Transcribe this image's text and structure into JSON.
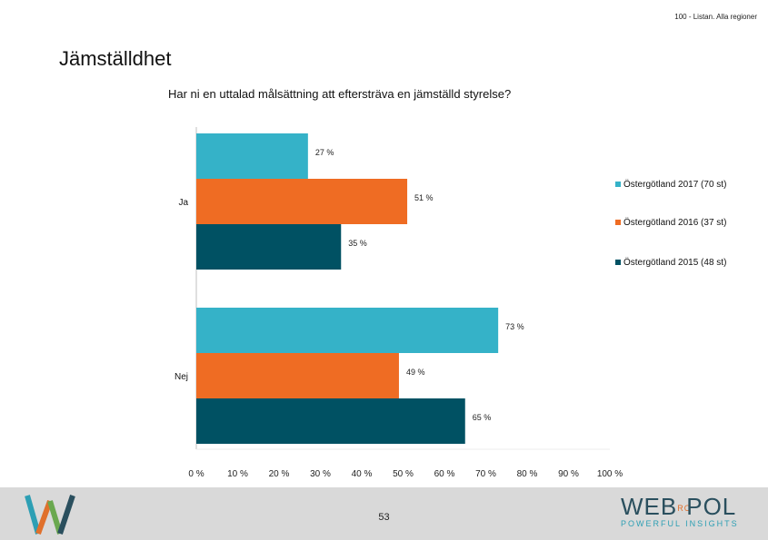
{
  "header_note": "100 - Listan. Alla regioner",
  "page_title": "Jämställdhet",
  "footer": {
    "page_number": "53",
    "brand_main": "WEB",
    "brand_ro": "RO",
    "brand_pol": "POL",
    "brand_tagline": "POWERFUL INSIGHTS"
  },
  "colors": {
    "series_2017": "#35b2c8",
    "series_2016": "#ef6c23",
    "series_2015": "#005163",
    "axis": "#bfbfbf",
    "footer_bg": "#d9d9d9"
  },
  "chart_data": {
    "type": "bar",
    "orientation": "horizontal",
    "title": "Har ni en uttalad målsättning att eftersträva en jämställd styrelse?",
    "categories": [
      "Ja",
      "Nej"
    ],
    "series": [
      {
        "name": "Östergötland 2017 (70 st)",
        "values": [
          27,
          73
        ],
        "labels": [
          "27 %",
          "73 %"
        ]
      },
      {
        "name": "Östergötland 2016 (37 st)",
        "values": [
          51,
          49
        ],
        "labels": [
          "51 %",
          "49 %"
        ]
      },
      {
        "name": "Östergötland 2015 (48 st)",
        "values": [
          35,
          65
        ],
        "labels": [
          "35 %",
          "65 %"
        ]
      }
    ],
    "xlim": [
      0,
      100
    ],
    "x_ticks": [
      "0 %",
      "10 %",
      "20 %",
      "30 %",
      "40 %",
      "50 %",
      "60 %",
      "70 %",
      "80 %",
      "90 %",
      "100 %"
    ],
    "legend_position": "right",
    "grid": false
  }
}
